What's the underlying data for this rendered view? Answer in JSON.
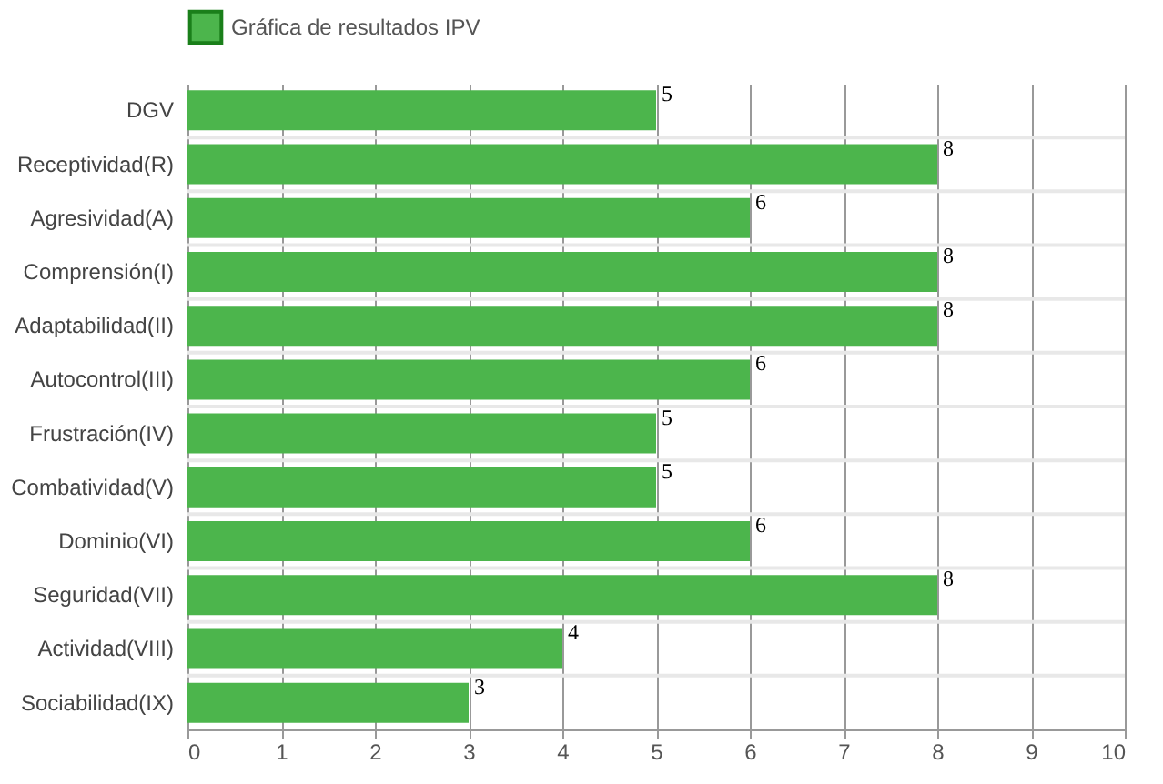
{
  "chart_data": {
    "type": "bar",
    "orientation": "horizontal",
    "categories": [
      "DGV",
      "Receptividad(R)",
      "Agresividad(A)",
      "Comprensión(I)",
      "Adaptabilidad(II)",
      "Autocontrol(III)",
      "Frustración(IV)",
      "Combatividad(V)",
      "Dominio(VI)",
      "Seguridad(VII)",
      "Actividad(VIII)",
      "Sociabilidad(IX)"
    ],
    "series": [
      {
        "name": "Gráfica de resultados IPV",
        "color": "#4cb54c",
        "values": [
          5,
          8,
          6,
          8,
          8,
          6,
          5,
          5,
          6,
          8,
          4,
          3
        ]
      }
    ],
    "xlim": [
      0,
      10
    ],
    "xticks": [
      0,
      1,
      2,
      3,
      4,
      5,
      6,
      7,
      8,
      9,
      10
    ],
    "grid": true,
    "legend": "top",
    "data_labels": true
  }
}
